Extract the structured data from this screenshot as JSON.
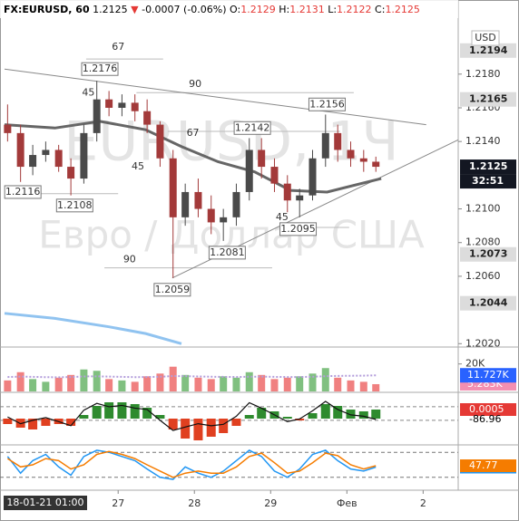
{
  "header": {
    "symbol": "FX:EURUSD, 60",
    "last": "1.2125",
    "arrow": "▼",
    "change": "-0.0007 (-0.06%)",
    "o_label": "O:",
    "o": "1.2129",
    "h_label": "H:",
    "h": "1.2131",
    "l_label": "L:",
    "l": "1.2122",
    "c_label": "C:",
    "c": "1.2125"
  },
  "watermark": {
    "line1": "EURUSD, 1Ч",
    "line2": "Евро / Доллар США"
  },
  "currency": "USD",
  "time_label": "18-01-21  01:00",
  "chart_data": [
    {
      "type": "candlestick",
      "x": [
        -0.45,
        -0.28,
        -0.12,
        0.05,
        0.22,
        0.38,
        0.55,
        0.72,
        0.88,
        1.05,
        1.22,
        1.38,
        1.55,
        1.72,
        1.88,
        2.05,
        2.22,
        2.38,
        2.55,
        2.72,
        2.88,
        3.05,
        3.22,
        3.38,
        3.55,
        3.72,
        3.88,
        4.05,
        4.22,
        4.38
      ],
      "open": [
        1.215,
        1.2145,
        1.2125,
        1.2132,
        1.2135,
        1.2125,
        1.2118,
        1.2145,
        1.2165,
        1.216,
        1.2163,
        1.2158,
        1.215,
        1.213,
        1.2095,
        1.211,
        1.21,
        1.2092,
        1.2095,
        1.211,
        1.2135,
        1.2125,
        1.2115,
        1.2105,
        1.2108,
        1.213,
        1.2145,
        1.2135,
        1.213,
        1.2128
      ],
      "high": [
        1.2162,
        1.215,
        1.2138,
        1.214,
        1.2138,
        1.213,
        1.215,
        1.2176,
        1.217,
        1.2168,
        1.2168,
        1.2165,
        1.2152,
        1.2135,
        1.2115,
        1.2118,
        1.2108,
        1.21,
        1.2115,
        1.2142,
        1.2142,
        1.213,
        1.212,
        1.2112,
        1.2135,
        1.2156,
        1.215,
        1.214,
        1.2135,
        1.2131
      ],
      "low": [
        1.214,
        1.2116,
        1.212,
        1.2128,
        1.2122,
        1.2108,
        1.2115,
        1.214,
        1.2155,
        1.2155,
        1.2152,
        1.2145,
        1.2125,
        1.2059,
        1.209,
        1.2095,
        1.2085,
        1.2081,
        1.209,
        1.2105,
        1.2118,
        1.211,
        1.2098,
        1.2095,
        1.2105,
        1.2125,
        1.2128,
        1.2125,
        1.2122,
        1.2122
      ],
      "close": [
        1.2145,
        1.2125,
        1.2132,
        1.2135,
        1.2125,
        1.2118,
        1.2145,
        1.2165,
        1.216,
        1.2163,
        1.2158,
        1.215,
        1.213,
        1.2095,
        1.211,
        1.21,
        1.2092,
        1.2095,
        1.211,
        1.2135,
        1.2125,
        1.2115,
        1.2105,
        1.2108,
        1.213,
        1.2145,
        1.2135,
        1.213,
        1.2128,
        1.2125
      ],
      "up_color": "#4a4a4a",
      "down_color": "#a33a3a",
      "ma": {
        "x": [
          -0.49,
          0.17,
          0.76,
          1.36,
          1.83,
          2.31,
          2.79,
          3.26,
          3.74,
          4.45
        ],
        "values": [
          1.215,
          1.2148,
          1.2152,
          1.2147,
          1.2137,
          1.2128,
          1.2122,
          1.2111,
          1.211,
          1.2118
        ],
        "color": "#666666"
      },
      "lower_band": {
        "x": [
          -0.49,
          0.17,
          0.88,
          1.36,
          1.83
        ],
        "values": [
          1.2038,
          1.2035,
          1.203,
          1.2026,
          1.202
        ],
        "color": "#90c3f0"
      },
      "trendlines": [
        {
          "x": [
            -0.49,
            5.04
          ],
          "y": [
            1.2183,
            1.215
          ]
        },
        {
          "x": [
            1.71,
            5.46
          ],
          "y": [
            1.2059,
            1.2141
          ]
        }
      ],
      "levels": [
        {
          "y": 1.2189,
          "x": [
            0.58,
            1.59
          ]
        },
        {
          "y": 1.2169,
          "x": [
            1.24,
            4.09
          ]
        },
        {
          "y": 1.2146,
          "x": [
            1.65,
            3.91
          ]
        },
        {
          "y": 1.2109,
          "x": [
            -0.49,
            1.0
          ]
        },
        {
          "y": 1.2065,
          "x": [
            0.82,
            3.02
          ]
        },
        {
          "y": 1.2089,
          "x": [
            3.5,
            4.03
          ]
        }
      ],
      "annotations": [
        {
          "text": "67",
          "x": 1.0,
          "y": 1.2196
        },
        {
          "text": "1.2176",
          "x": 0.76,
          "y": 1.2183,
          "boxed": true
        },
        {
          "text": "45",
          "x": 0.61,
          "y": 1.2169
        },
        {
          "text": "90",
          "x": 2.01,
          "y": 1.2174
        },
        {
          "text": "1.2156",
          "x": 3.74,
          "y": 1.2162,
          "boxed": true
        },
        {
          "text": "67",
          "x": 1.98,
          "y": 1.2145
        },
        {
          "text": "1.2142",
          "x": 2.76,
          "y": 1.2148,
          "boxed": true
        },
        {
          "text": "45",
          "x": 1.26,
          "y": 1.2125
        },
        {
          "text": "1.2116",
          "x": -0.25,
          "y": 1.211,
          "boxed": true
        },
        {
          "text": "1.2108",
          "x": 0.43,
          "y": 1.2102,
          "boxed": true
        },
        {
          "text": "45",
          "x": 3.15,
          "y": 1.2095
        },
        {
          "text": "1.2095",
          "x": 3.36,
          "y": 1.2088,
          "boxed": true
        },
        {
          "text": "1.2081",
          "x": 2.43,
          "y": 1.2074,
          "boxed": true
        },
        {
          "text": "90",
          "x": 1.15,
          "y": 1.207
        },
        {
          "text": "1.2059",
          "x": 1.71,
          "y": 1.2052,
          "boxed": true
        }
      ],
      "xlim": [
        -0.49,
        5.46
      ],
      "xticks": [
        {
          "value": 1,
          "label": "27"
        },
        {
          "value": 2,
          "label": "28"
        },
        {
          "value": 3,
          "label": "29"
        },
        {
          "value": 4,
          "label": "Фев"
        },
        {
          "value": 5,
          "label": "2"
        }
      ],
      "ylim": [
        1.2018,
        1.2224
      ],
      "yticks": [
        {
          "value": 1.202,
          "label": "1.2020"
        },
        {
          "value": 1.206,
          "label": "1.2060"
        },
        {
          "value": 1.208,
          "label": "1.2080"
        },
        {
          "value": 1.21,
          "label": "1.2100"
        },
        {
          "value": 1.214,
          "label": "1.2140"
        },
        {
          "value": 1.216,
          "label": "1.2160"
        },
        {
          "value": 1.218,
          "label": "1.2180"
        }
      ],
      "price_labels": [
        {
          "value": 1.2194,
          "label": "1.2194",
          "style": "gray"
        },
        {
          "value": 1.2165,
          "label": "1.2165",
          "style": "gray"
        },
        {
          "value": 1.2125,
          "label": "1.2125",
          "style": "dark"
        },
        {
          "value": 1.2073,
          "label": "1.2073",
          "style": "gray"
        },
        {
          "value": 1.2044,
          "label": "1.2044",
          "style": "gray"
        }
      ],
      "countdown": "32:51"
    },
    {
      "type": "bar",
      "values": [
        8000,
        14000,
        9000,
        7000,
        10000,
        12000,
        16000,
        15000,
        9000,
        8000,
        7000,
        11000,
        13000,
        18000,
        12000,
        10000,
        9000,
        11000,
        10000,
        14000,
        12000,
        9000,
        10000,
        11000,
        13000,
        17000,
        10000,
        8000,
        7000,
        5283
      ],
      "last_label": "5.283K",
      "last_color": "#f48fb1",
      "ma_values": [
        10500,
        10800,
        10600,
        10400,
        10300,
        10500,
        10900,
        11000,
        10800,
        10600,
        10400,
        10500,
        10700,
        11200,
        11100,
        10900,
        10700,
        10600,
        10500,
        10700,
        10800,
        10600,
        10500,
        10500,
        10700,
        11100,
        11300,
        11400,
        11500,
        11727
      ],
      "ma_last_label": "11.727K",
      "ma_color": "#2962ff",
      "up_color": "#80c080",
      "down_color": "#f08080",
      "ylim": [
        0,
        31000
      ],
      "yticks": [
        {
          "value": 20000,
          "label": "20K"
        }
      ]
    },
    {
      "type": "histogram",
      "values": [
        -0.0003,
        -0.0005,
        -0.0006,
        -0.0004,
        -0.0003,
        -0.0004,
        0.0002,
        0.0007,
        0.0009,
        0.0009,
        0.0008,
        0.0006,
        0.0002,
        -0.0006,
        -0.0011,
        -0.0012,
        -0.001,
        -0.0008,
        -0.0004,
        0.0002,
        0.0006,
        0.0004,
        0.0001,
        -0.0001,
        0.0003,
        0.0008,
        0.0007,
        0.0005,
        0.0004,
        0.0005
      ],
      "pos_color": "#2e8b2e",
      "neg_color": "#e04020",
      "label_color": "#e53935",
      "ylim": [
        -0.0014,
        0.0014
      ],
      "line": {
        "values": [
          -50,
          -150,
          -100,
          -60,
          -120,
          -180,
          50,
          150,
          100,
          120,
          80,
          60,
          -100,
          -250,
          -200,
          -150,
          -180,
          -160,
          -40,
          160,
          80,
          -20,
          -120,
          -80,
          40,
          180,
          60,
          -20,
          -40,
          -86.96
        ],
        "color": "#111111",
        "axis": "y2"
      },
      "y2lim": [
        -450,
        300
      ],
      "levels": [
        100,
        -100
      ]
    },
    {
      "type": "line",
      "series": [
        {
          "values": [
            70,
            30,
            60,
            75,
            45,
            25,
            70,
            85,
            80,
            70,
            60,
            40,
            20,
            15,
            45,
            30,
            20,
            35,
            60,
            85,
            70,
            35,
            20,
            40,
            75,
            85,
            60,
            40,
            35,
            44.52
          ],
          "color": "#2196f3"
        },
        {
          "values": [
            65,
            45,
            50,
            65,
            60,
            40,
            50,
            75,
            82,
            75,
            65,
            50,
            35,
            20,
            30,
            35,
            30,
            30,
            45,
            70,
            78,
            55,
            30,
            35,
            55,
            78,
            72,
            50,
            40,
            47.77
          ],
          "color": "#f57c00"
        }
      ],
      "ylim": [
        0,
        100
      ],
      "levels": [
        80,
        20
      ]
    }
  ]
}
